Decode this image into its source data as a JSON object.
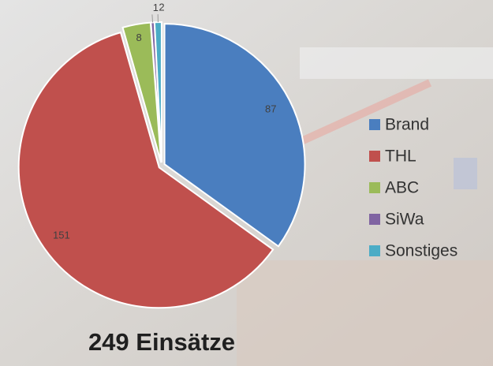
{
  "chart_data": {
    "type": "pie",
    "title": "249 Einsätze",
    "categories": [
      "Brand",
      "THL",
      "ABC",
      "SiWa",
      "Sonstiges"
    ],
    "values": [
      87,
      151,
      8,
      1,
      2
    ],
    "colors": [
      "#4a7ebf",
      "#c0504d",
      "#9bbb59",
      "#8064a2",
      "#4bacc6"
    ],
    "legend": "right"
  }
}
